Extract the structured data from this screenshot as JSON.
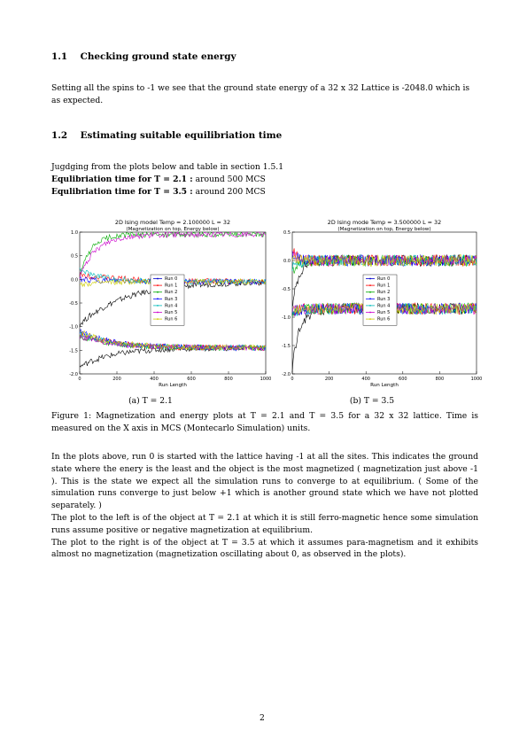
{
  "section_1_1": {
    "number": "1.1",
    "title": "Checking ground state energy",
    "body": "Setting all the spins to -1 we see that the ground state energy of a 32 x 32 Lattice is -2048.0 which is as expected."
  },
  "section_1_2": {
    "number": "1.2",
    "title": "Estimating suitable equilibriation time",
    "intro": "Jugdging from the plots below and table in section 1.5.1",
    "line1_label": "Equlibriation time for T = 2.1 :",
    "line1_value": " around 500 MCS",
    "line2_label": "Equlibriation time for T = 3.5 :",
    "line2_value": " around 200 MCS"
  },
  "figure": {
    "subcaption_a": "(a) T = 2.1",
    "subcaption_b": "(b) T = 3.5",
    "caption": "Figure 1:  Magnetization and energy plots at T = 2.1 and T = 3.5 for a 32 x 32 lattice.  Time is measured on the X axis in MCS (Montecarlo Simulation) units."
  },
  "discussion": {
    "p1": "In the plots above, run 0 is started with the lattice having -1 at all the sites. This indicates the ground state where the enery is the least and the object is the most magnetized ( magnetization just above -1 ). This is the state we expect all the simulation runs to converge to at equilibrium. ( Some of the simulation runs converge to just below +1 which is another ground state which we have not plotted separately. )",
    "p2": "The plot to the left is of the object at T = 2.1 at which it is still ferro-magnetic hence some simulation runs assume positive or negative magnetization at equilibrium.",
    "p3": "The plot to the right is of the object at T = 3.5 at which it assumes para-magnetism and it exhibits almost no magnetization (magnetization oscillating about 0, as observed in the plots)."
  },
  "page_number": "2",
  "chart_data": [
    {
      "type": "line",
      "title": "2D Ising model Temp = 2.100000 L = 32",
      "subtitle": "(Magnetization on top, Energy below)",
      "xlabel": "Run Length",
      "xlim": [
        0,
        1000
      ],
      "ylim": [
        -2.0,
        1.0
      ],
      "y_inverted": true,
      "x_ticks": [
        "0",
        "200",
        "400",
        "600",
        "800",
        "1000"
      ],
      "y_ticks": [
        "1.0",
        "0.5",
        "0.0",
        "-0.5",
        "-1.0",
        "-1.5",
        "-2.0"
      ],
      "legend_position": "center",
      "series": [
        {
          "name": "Run 0",
          "color": "#0000cc",
          "magnetization_equilibrium": -0.05,
          "energy_equilibrium": -1.45
        },
        {
          "name": "Run 1",
          "color": "#ff0000",
          "magnetization_equilibrium": -0.05,
          "energy_equilibrium": -1.45
        },
        {
          "name": "Run 2",
          "color": "#00aa00",
          "magnetization_equilibrium": 0.95,
          "energy_equilibrium": -1.45
        },
        {
          "name": "Run 3",
          "color": "#0000ff",
          "magnetization_equilibrium": -0.05,
          "energy_equilibrium": -1.45
        },
        {
          "name": "Run 4",
          "color": "#00bbbb",
          "magnetization_equilibrium": -0.05,
          "energy_equilibrium": -1.45
        },
        {
          "name": "Run 5",
          "color": "#cc00cc",
          "magnetization_equilibrium": 0.95,
          "energy_equilibrium": -1.45
        },
        {
          "name": "Run 6",
          "color": "#cccc00",
          "magnetization_equilibrium": -0.05,
          "energy_equilibrium": -1.45
        }
      ],
      "colors": {
        "run0": "#000000",
        "accent": "#0000cc"
      }
    },
    {
      "type": "line",
      "title": "2D Ising mode Temp = 3.500000 L = 32",
      "subtitle": "(Magnetization on top, Energy below)",
      "xlabel": "Run Length",
      "xlim": [
        0,
        1000
      ],
      "ylim": [
        -2.0,
        0.5
      ],
      "y_inverted": true,
      "x_ticks": [
        "0",
        "200",
        "400",
        "600",
        "800",
        "1000"
      ],
      "y_ticks": [
        "0.5",
        "0.0",
        "-0.5",
        "-1.0",
        "-1.5",
        "-2.0"
      ],
      "legend_position": "center",
      "series": [
        {
          "name": "Run 0",
          "color": "#0000cc",
          "magnetization_equilibrium": 0.0,
          "energy_equilibrium": -0.85
        },
        {
          "name": "Run 1",
          "color": "#ff0000",
          "magnetization_equilibrium": 0.0,
          "energy_equilibrium": -0.85
        },
        {
          "name": "Run 2",
          "color": "#00aa00",
          "magnetization_equilibrium": 0.0,
          "energy_equilibrium": -0.85
        },
        {
          "name": "Run 3",
          "color": "#0000ff",
          "magnetization_equilibrium": 0.0,
          "energy_equilibrium": -0.85
        },
        {
          "name": "Run 4",
          "color": "#00bbbb",
          "magnetization_equilibrium": 0.0,
          "energy_equilibrium": -0.85
        },
        {
          "name": "Run 5",
          "color": "#cc00cc",
          "magnetization_equilibrium": 0.0,
          "energy_equilibrium": -0.85
        },
        {
          "name": "Run 6",
          "color": "#cccc00",
          "magnetization_equilibrium": 0.0,
          "energy_equilibrium": -0.85
        }
      ]
    }
  ]
}
